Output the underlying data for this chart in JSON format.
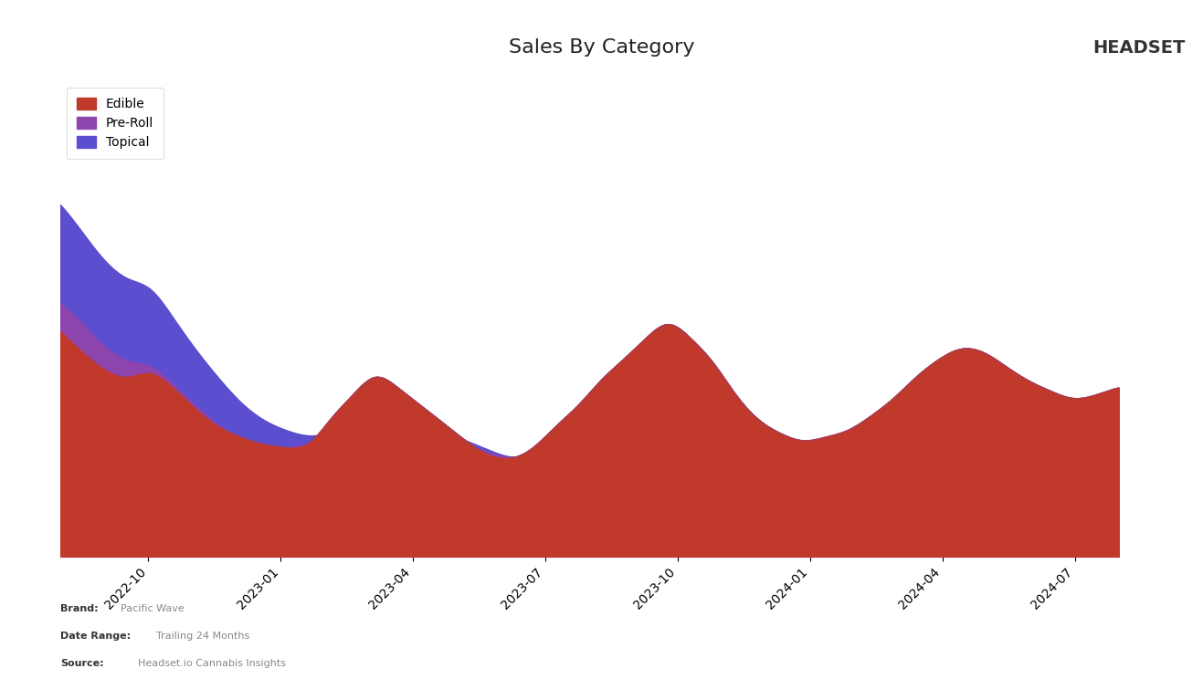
{
  "title": "Sales By Category",
  "title_fontsize": 16,
  "background_color": "#ffffff",
  "plot_bg_color": "#ffffff",
  "categories": [
    "Edible",
    "Pre-Roll",
    "Topical"
  ],
  "colors": {
    "Edible": "#c0392b",
    "Pre-Roll": "#8e44ad",
    "Topical": "#5b4fcf"
  },
  "x_tick_labels": [
    "2022-10",
    "2023-01",
    "2023-04",
    "2023-07",
    "2023-10",
    "2024-01",
    "2024-04",
    "2024-07"
  ],
  "brand_label": "Pacific Wave",
  "date_range_label": "Trailing 24 Months",
  "source_label": "Headset.io Cannabis Insights",
  "edible_data": [
    320,
    290,
    265,
    255,
    260,
    240,
    210,
    185,
    170,
    160,
    155,
    160,
    195,
    230,
    255,
    240,
    215,
    190,
    165,
    145,
    140,
    155,
    185,
    215,
    250,
    280,
    310,
    330,
    310,
    275,
    230,
    195,
    175,
    165,
    170,
    180,
    200,
    225,
    255,
    280,
    295,
    290,
    270,
    250,
    235,
    225,
    230,
    240
  ],
  "topical_data": [
    500,
    460,
    420,
    395,
    380,
    340,
    295,
    255,
    220,
    195,
    180,
    172,
    175,
    185,
    200,
    200,
    190,
    178,
    165,
    152,
    142,
    145,
    152,
    163,
    173,
    183,
    200,
    218,
    208,
    192,
    175,
    162,
    155,
    150,
    153,
    158,
    165,
    175,
    190,
    205,
    215,
    215,
    205,
    193,
    182,
    175,
    177,
    182
  ],
  "preroll_data": [
    360,
    330,
    298,
    278,
    270,
    245,
    215,
    188,
    170,
    160,
    155,
    160,
    167,
    177,
    193,
    193,
    182,
    171,
    160,
    148,
    141,
    143,
    150,
    160,
    169,
    178,
    193,
    208,
    200,
    185,
    170,
    158,
    153,
    148,
    151,
    155,
    162,
    171,
    184,
    197,
    207,
    207,
    198,
    187,
    178,
    171,
    173,
    177
  ]
}
